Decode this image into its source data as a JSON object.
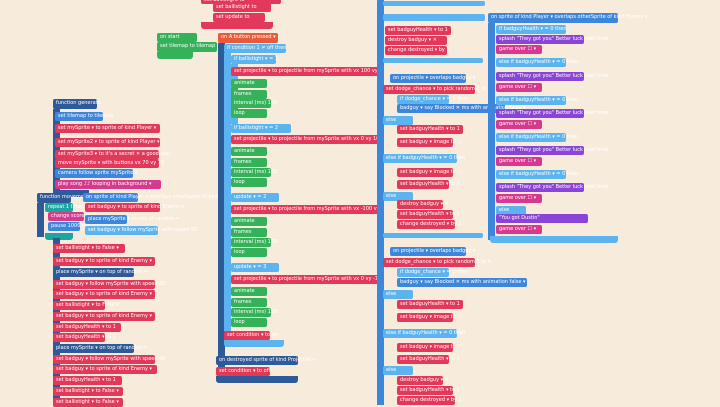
{
  "workspace": {
    "background": "#f7ecdc",
    "colors": {
      "variables": "#e2385a",
      "sprites": "#3c86dc",
      "logic": "#5bb4f0",
      "loops": "#19a7a0",
      "functions": "#2f5a9a",
      "events": "#35b15a",
      "arrays": "#8a45d6",
      "game": "#d6398d"
    }
  },
  "top_blocks": {
    "set_ballistight": "set  ballistight  to",
    "set_update": "set  update  to"
  },
  "on_start": {
    "hat": "on start",
    "set_tilemap": "set tilemap to  tilemap"
  },
  "forever": {
    "hat": "on  A  button pressed  ▾",
    "if_condition": "if  condition  1  ≠  off  then",
    "if_ballistight": "if  ballistight  ▾  =  1",
    "set_projectile_1": "set  projectile  ▾  to  projectile  from  mySprite  with vx  100  vy  0",
    "animate": "animate",
    "frames": "frames",
    "interval": "interval (ms)  100",
    "loop": "loop",
    "elif_1": "if  ballistight  ▾  =  2",
    "set_projectile_2": "set  projectile  ▾  to  projectile  from  mySprite  with vx  0  vy  100",
    "elif_2": "update  ▾  =  2",
    "set_projectile_3": "set  projectile  ▾  to  projectile  from  mySprite  with vx  -100  vy  0",
    "elif_3": "update  ▾  =  3",
    "set_projectile_4": "set  projectile  ▾  to  projectile  from  mySprite  with vx  0  vy  -100",
    "set_condition": "set  condition  ▾  to  on",
    "destroy_on_wall": "on  destroyed  sprite  of kind  Projectile  ▾",
    "set_condition_off": "set  condition  ▾  to  off"
  },
  "functions": {
    "generate_hat": "function  generate",
    "tilemap_set": "set  tilemap  to  tilemap",
    "set_mysprite": "set  mySprite  ▾  to  sprite  of kind  Player  ▾",
    "set_mysprite2": "set  mySprite2  ▾  to  sprite  of kind  Player  ▾",
    "set_mysprite3": "set  mySprite3  ▾  to  it's a secret  ✕  a good day!",
    "move": "move  mySprite  ▾  with buttons  vx  70  vy  70",
    "camera": "camera follow sprite  mySprite  ▾",
    "play_song": "play  song  ♪♪  looping in background  ▾",
    "function_hat2": "function  movement",
    "repeat": "repeat  1  times",
    "change_score": "change score by  1",
    "pause": "pause  1000  ms",
    "set_ballistight": "set  ballistight  ▾  to  False  ▾",
    "place_on_top": "place  mySprite  ▾  on top of random  ▾",
    "set_badguy": "set  badguy  ▾  to  sprite  of kind  Enemy  ▾",
    "follow": "set  badguy  ▾  follow  mySprite  with speed  50"
  },
  "overlap": {
    "on_overlap": "on  sprite  of kind  Player  ▾  overlaps  otherSprite  of kind  Enemy  ▾",
    "if_badguy_health": "if  badguyHealth  ▾  =  0  then",
    "set_destroy": "destroy  badguy  ▾  ✕",
    "change_destroyed": "change  destroyed  ▾  by  1",
    "projectile_overlap": "on  projectile  ▾  overlaps  badguy  ▾",
    "set_dodge_chance": "set  dodge_chance  ▾  to  pick random  1  to  6",
    "if_dodge": "if  dodge_chance  ▾  =  1  then",
    "badguy_say": "badguy  ▾  say  Blocked  ✕  ms with animation  false  ▾",
    "else": "else",
    "set_badguy_health": "set  badguyHealth  ▾  to  1",
    "else_if": "else if  badguyHealth  ▾  =  0  then",
    "change_image": "set  badguy  ▾  image to  ▢"
  },
  "dialog": {
    "show_they_got": "\"They got yo...\"",
    "better_luck": "Better luck next time",
    "game_over": "game over  ☐  ▾",
    "you_got_dustin": "\"You got Dustin\"",
    "splash": "splash  \"They got you\"  Better luck next time"
  }
}
